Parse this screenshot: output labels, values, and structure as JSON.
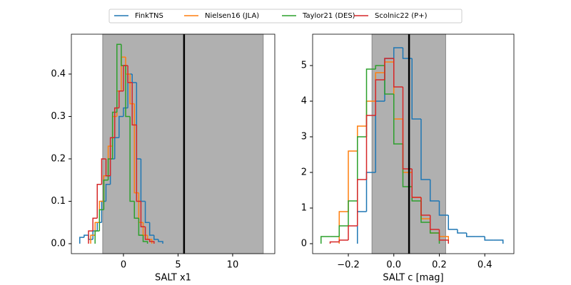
{
  "chart_data": [
    {
      "type": "histogram",
      "xlabel": "SALT x1",
      "xlim": [
        -4.77,
        13.86
      ],
      "ylim": [
        -0.0235,
        0.494
      ],
      "xticks": [
        0,
        5,
        10
      ],
      "yticks": [
        {
          "value": 0,
          "label": "0.0"
        },
        {
          "value": 0.1,
          "label": "0.1"
        },
        {
          "value": 0.2,
          "label": "0.2"
        },
        {
          "value": 0.3,
          "label": "0.3"
        },
        {
          "value": 0.4,
          "label": "0.4"
        }
      ],
      "span": [
        -1.9,
        12.8
      ],
      "span_color": "#b0b0b0",
      "vline": 5.55,
      "series": [
        {
          "name": "FinkTNS",
          "color": "#1f77b4",
          "bins": [
            -4,
            -3.6,
            -3.2,
            -2.8,
            -2.4,
            -2,
            -1.6,
            -1.2,
            -0.8,
            -0.4,
            0,
            0.4,
            0.8,
            1.2,
            1.6,
            2,
            2.4,
            2.8,
            3.2,
            3.6
          ],
          "values": [
            0.015,
            0.02,
            0.01,
            0.03,
            0.05,
            0.1,
            0.14,
            0.2,
            0.25,
            0.3,
            0.32,
            0.4,
            0.38,
            0.2,
            0.1,
            0.05,
            0.02,
            0.01,
            0.005
          ]
        },
        {
          "name": "Nielsen16 (JLA)",
          "color": "#ff7f0e",
          "bins": [
            -3,
            -2.6,
            -2.2,
            -1.8,
            -1.4,
            -1,
            -0.6,
            -0.2,
            0.2,
            0.6,
            1,
            1.4,
            1.8,
            2.2,
            2.6
          ],
          "values": [
            0.02,
            0.05,
            0.1,
            0.16,
            0.23,
            0.3,
            0.36,
            0.44,
            0.4,
            0.33,
            0.12,
            0.05,
            0.02,
            0.01
          ]
        },
        {
          "name": "Taylor21 (DES)",
          "color": "#2ca02c",
          "bins": [
            -2.6,
            -2.2,
            -1.8,
            -1.4,
            -1,
            -0.6,
            -0.2,
            0.2,
            0.6,
            1,
            1.4,
            1.8,
            2.2
          ],
          "values": [
            0.03,
            0.08,
            0.15,
            0.2,
            0.31,
            0.47,
            0.42,
            0.3,
            0.1,
            0.06,
            0.02,
            0.005
          ]
        },
        {
          "name": "Scolnic22 (P+)",
          "color": "#d62728",
          "bins": [
            -3.2,
            -2.8,
            -2.4,
            -2,
            -1.6,
            -1.2,
            -0.8,
            -0.4,
            0,
            0.4,
            0.8,
            1.2,
            1.6,
            2,
            2.4,
            2.8
          ],
          "values": [
            0.03,
            0.06,
            0.14,
            0.2,
            0.16,
            0.25,
            0.32,
            0.36,
            0.42,
            0.38,
            0.28,
            0.1,
            0.04,
            0.01,
            0.005
          ]
        }
      ]
    },
    {
      "type": "histogram",
      "xlabel": "SALT c [mag]",
      "xlim": [
        -0.357,
        0.528
      ],
      "ylim": [
        -0.28,
        5.88
      ],
      "xticks": [
        {
          "value": -0.2,
          "label": "−0.2"
        },
        {
          "value": 0,
          "label": "0.0"
        },
        {
          "value": 0.2,
          "label": "0.2"
        },
        {
          "value": 0.4,
          "label": "0.4"
        }
      ],
      "yticks": [
        0,
        1,
        2,
        3,
        4,
        5
      ],
      "span": [
        -0.096,
        0.228
      ],
      "span_color": "#b0b0b0",
      "vline": 0.067,
      "series": [
        {
          "name": "FinkTNS",
          "color": "#1f77b4",
          "bins": [
            -0.16,
            -0.12,
            -0.08,
            -0.04,
            0,
            0.04,
            0.08,
            0.12,
            0.16,
            0.2,
            0.24,
            0.28,
            0.32,
            0.36,
            0.4,
            0.44,
            0.48
          ],
          "values": [
            0.9,
            2.0,
            4.0,
            5.2,
            5.5,
            5.2,
            3.5,
            1.8,
            1.2,
            0.8,
            0.4,
            0.3,
            0.2,
            0.2,
            0.1,
            0.1
          ]
        },
        {
          "name": "Nielsen16 (JLA)",
          "color": "#ff7f0e",
          "bins": [
            -0.24,
            -0.2,
            -0.16,
            -0.12,
            -0.08,
            -0.04,
            0,
            0.04,
            0.08,
            0.12,
            0.16,
            0.2,
            0.24
          ],
          "values": [
            0.9,
            2.6,
            3.3,
            4.0,
            4.8,
            5.1,
            3.5,
            2.0,
            1.3,
            0.7,
            0.3,
            0.2
          ]
        },
        {
          "name": "Taylor21 (DES)",
          "color": "#2ca02c",
          "bins": [
            -0.32,
            -0.28,
            -0.24,
            -0.2,
            -0.16,
            -0.12,
            -0.08,
            -0.04,
            0,
            0.04,
            0.08,
            0.12,
            0.16,
            0.2
          ],
          "values": [
            0.2,
            0.2,
            0.5,
            1.2,
            3.0,
            4.9,
            5.0,
            4.2,
            2.8,
            1.6,
            1.2,
            0.6,
            0.3
          ]
        },
        {
          "name": "Scolnic22 (P+)",
          "color": "#d62728",
          "bins": [
            -0.28,
            -0.24,
            -0.2,
            -0.16,
            -0.12,
            -0.08,
            -0.04,
            0,
            0.04,
            0.08,
            0.12,
            0.16,
            0.2,
            0.24
          ],
          "values": [
            0.05,
            0.1,
            0.5,
            1.8,
            3.6,
            4.6,
            5.2,
            4.4,
            2.1,
            1.3,
            0.8,
            0.4,
            0.1
          ]
        }
      ]
    }
  ]
}
